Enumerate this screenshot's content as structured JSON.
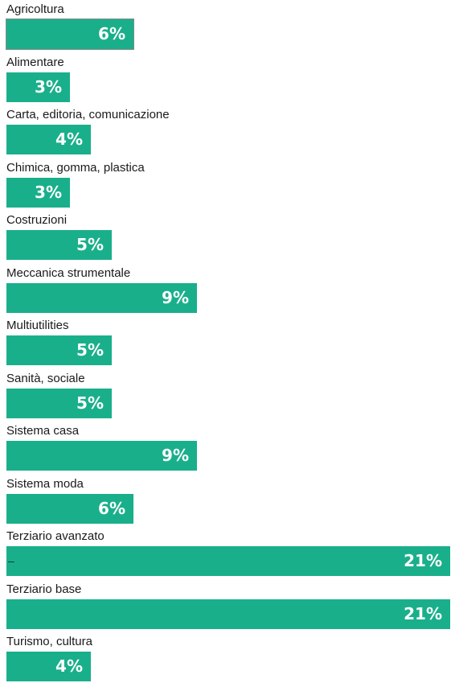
{
  "colors": {
    "bar": "#1aaf8b",
    "value_text": "#ffffff",
    "label_text": "#1a1a1a"
  },
  "chart_data": {
    "type": "bar",
    "orientation": "horizontal",
    "categories": [
      "Agricoltura",
      "Alimentare",
      "Carta, editoria, comunicazione",
      "Chimica, gomma, plastica",
      "Costruzioni",
      "Meccanica strumentale",
      "Multiutilities",
      "Sanità, sociale",
      "Sistema casa",
      "Sistema moda",
      "Terziario avanzato",
      "Terziario base",
      "Turismo, cultura"
    ],
    "values": [
      6,
      3,
      4,
      3,
      5,
      9,
      5,
      5,
      9,
      6,
      21,
      21,
      4
    ],
    "value_labels": [
      "6%",
      "3%",
      "4%",
      "3%",
      "5%",
      "9%",
      "5%",
      "5%",
      "9%",
      "6%",
      "21%",
      "21%",
      "4%"
    ],
    "unit": "%",
    "xlim": [
      0,
      21
    ],
    "title": "",
    "xlabel": "",
    "ylabel": "",
    "grid": false,
    "legend": "none",
    "annotations": [
      {
        "category": "Terziario avanzato",
        "text": "–"
      }
    ]
  }
}
